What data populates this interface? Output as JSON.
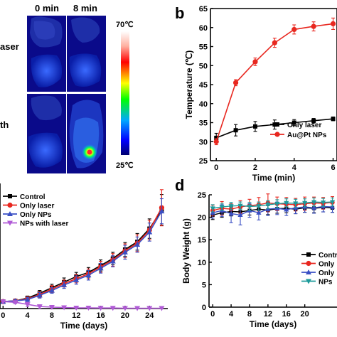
{
  "panel_a": {
    "columns": [
      "0 min",
      "8 min"
    ],
    "row_labels": [
      "aser",
      "th"
    ],
    "colorbar": {
      "max_label": "70℃",
      "min_label": "25℃",
      "colors": [
        "#ffffff",
        "#ff0000",
        "#ffff00",
        "#00ff00",
        "#00a0ff",
        "#0000ff",
        "#000080"
      ]
    }
  },
  "chart_data": [
    {
      "panel": "b",
      "type": "line",
      "xlabel": "Time (min)",
      "ylabel": "Temperature (℃)",
      "xlim": [
        -0.3,
        6.2
      ],
      "ylim": [
        25,
        65
      ],
      "xticks": [
        0,
        2,
        4,
        6
      ],
      "xtick_labels": [
        "0",
        "2",
        "4",
        "6"
      ],
      "yticks": [
        25,
        30,
        35,
        40,
        45,
        50,
        55,
        60,
        65
      ],
      "legend": "inside right",
      "series": [
        {
          "name": "Only laser",
          "color": "#000000",
          "marker": "square",
          "x": [
            0,
            1,
            2,
            3,
            4,
            5,
            6
          ],
          "y": [
            31,
            33,
            34,
            34.5,
            35,
            35.5,
            36
          ],
          "err": [
            1.2,
            1.5,
            1.3,
            1.2,
            0.8,
            0.6,
            0.5
          ]
        },
        {
          "name": "Au@Pt NPs",
          "color": "#e8271f",
          "marker": "circle",
          "x": [
            0,
            1,
            2,
            3,
            4,
            5,
            6
          ],
          "y": [
            30,
            45.5,
            51,
            56,
            59.5,
            60.3,
            61
          ],
          "err": [
            0.8,
            0.8,
            1.0,
            1.2,
            1.2,
            1.2,
            1.5
          ]
        }
      ]
    },
    {
      "panel": "c",
      "type": "line",
      "xlabel": "Time (days)",
      "ylabel": "",
      "xlim": [
        -0.5,
        27
      ],
      "ylim": [
        0,
        18
      ],
      "xticks": [
        0,
        4,
        8,
        12,
        16,
        20,
        24
      ],
      "legend": "top-left",
      "series": [
        {
          "name": "Control",
          "color": "#000000",
          "marker": "square",
          "x": [
            0,
            2,
            4,
            6,
            8,
            10,
            12,
            14,
            16,
            18,
            20,
            22,
            24,
            26
          ],
          "y": [
            1,
            1.1,
            1.5,
            2.2,
            3,
            3.8,
            4.6,
            5.2,
            6.2,
            7.2,
            8.5,
            9.6,
            11.5,
            14.2
          ],
          "err": [
            0,
            0.2,
            0.3,
            0.4,
            0.5,
            0.6,
            0.6,
            0.7,
            0.8,
            0.9,
            1.0,
            1.2,
            1.4,
            2.2
          ]
        },
        {
          "name": "Only laser",
          "color": "#e8271f",
          "marker": "circle",
          "x": [
            0,
            2,
            4,
            6,
            8,
            10,
            12,
            14,
            16,
            18,
            20,
            22,
            24,
            26
          ],
          "y": [
            1,
            1.1,
            1.4,
            2.0,
            2.8,
            3.6,
            4.3,
            5.0,
            6.0,
            7.0,
            8.3,
            9.4,
            11.3,
            14.5
          ],
          "err": [
            0,
            0.2,
            0.3,
            0.4,
            0.5,
            0.5,
            0.6,
            0.7,
            0.8,
            0.9,
            1.0,
            1.2,
            1.4,
            2.6
          ]
        },
        {
          "name": "Only NPs",
          "color": "#3a4fc4",
          "marker": "triangle",
          "x": [
            0,
            2,
            4,
            6,
            8,
            10,
            12,
            14,
            16,
            18,
            20,
            22,
            24,
            26
          ],
          "y": [
            1,
            1.1,
            1.3,
            1.9,
            2.6,
            3.4,
            4.1,
            4.8,
            5.8,
            6.8,
            8.1,
            9.2,
            11.0,
            14.0
          ],
          "err": [
            0,
            0.2,
            0.3,
            0.4,
            0.4,
            0.5,
            0.6,
            0.7,
            0.7,
            0.8,
            1.0,
            1.1,
            1.3,
            1.8
          ]
        },
        {
          "name": "NPs with laser",
          "color": "#b05ad6",
          "marker": "triangle-down",
          "x": [
            0,
            2,
            4,
            6,
            8,
            10,
            12,
            14,
            16,
            18,
            20,
            22,
            24,
            26
          ],
          "y": [
            1,
            0.9,
            0.6,
            0.3,
            0.2,
            0.15,
            0.1,
            0.1,
            0.08,
            0.08,
            0.05,
            0.05,
            0.05,
            0.05
          ],
          "err": [
            0,
            0.2,
            0.3,
            0.25,
            0.1,
            0.05,
            0.05,
            0.05,
            0.05,
            0.05,
            0.03,
            0.03,
            0.03,
            0.03
          ]
        }
      ]
    },
    {
      "panel": "d",
      "type": "line",
      "xlabel": "Time (days)",
      "ylabel": "Body Weight (g)",
      "xlim": [
        -0.8,
        27
      ],
      "ylim": [
        0,
        25
      ],
      "xticks": [
        0,
        4,
        8,
        12,
        16,
        20
      ],
      "yticks": [
        0,
        5,
        10,
        15,
        20,
        25
      ],
      "legend": "bottom-right",
      "series": [
        {
          "name": "Control",
          "color": "#000000",
          "marker": "square",
          "x": [
            0,
            2,
            4,
            6,
            8,
            10,
            12,
            14,
            16,
            18,
            20,
            22,
            24,
            26
          ],
          "y": [
            20.5,
            21,
            21.3,
            21.2,
            21.5,
            21.8,
            21.6,
            21.9,
            22,
            21.8,
            22.1,
            22,
            22.2,
            22.1
          ],
          "err": [
            1,
            1,
            1,
            1,
            1,
            1,
            1,
            1,
            1,
            1,
            1,
            1,
            1,
            1
          ]
        },
        {
          "name": "Only laser",
          "color": "#e8271f",
          "marker": "circle",
          "x": [
            0,
            2,
            4,
            6,
            8,
            10,
            12,
            14,
            16,
            18,
            20,
            22,
            24,
            26
          ],
          "y": [
            21.5,
            22,
            21.8,
            22.3,
            22.6,
            22.8,
            23.2,
            23,
            22.9,
            22.8,
            23,
            23.2,
            23.1,
            23.3
          ],
          "err": [
            1.2,
            1.5,
            1.2,
            1.4,
            1.4,
            1.6,
            2,
            1.5,
            1.5,
            1.4,
            1.5,
            1.3,
            1.3,
            1.3
          ]
        },
        {
          "name": "Only NPs",
          "color": "#3a4fc4",
          "marker": "triangle",
          "x": [
            0,
            2,
            4,
            6,
            8,
            10,
            12,
            14,
            16,
            18,
            20,
            22,
            24,
            26
          ],
          "y": [
            21,
            21.5,
            20.8,
            20.5,
            21.5,
            21,
            21.8,
            22,
            21.7,
            22.1,
            22.3,
            22.1,
            22.4,
            22.3
          ],
          "err": [
            1.2,
            1.3,
            2,
            2.2,
            1.5,
            1.6,
            1.4,
            1.4,
            1.3,
            1.3,
            1.2,
            1.2,
            1.2,
            1.2
          ]
        },
        {
          "name": "NPs with laser",
          "color": "#1c9a9a",
          "marker": "triangle-down",
          "x": [
            0,
            2,
            4,
            6,
            8,
            10,
            12,
            14,
            16,
            18,
            20,
            22,
            24,
            26
          ],
          "y": [
            22,
            22.3,
            22.5,
            22.6,
            22.4,
            22.5,
            22.8,
            23,
            23.2,
            23.1,
            23.2,
            23.4,
            23.3,
            23.4
          ],
          "err": [
            0.8,
            0.8,
            0.8,
            0.8,
            0.9,
            0.9,
            0.9,
            0.9,
            0.9,
            0.9,
            0.9,
            0.9,
            0.9,
            0.9
          ]
        }
      ],
      "legend_labels": [
        "Contr",
        "Only",
        "Only",
        "NPs"
      ]
    }
  ],
  "panel_letters": {
    "b": "b",
    "d": "d"
  }
}
